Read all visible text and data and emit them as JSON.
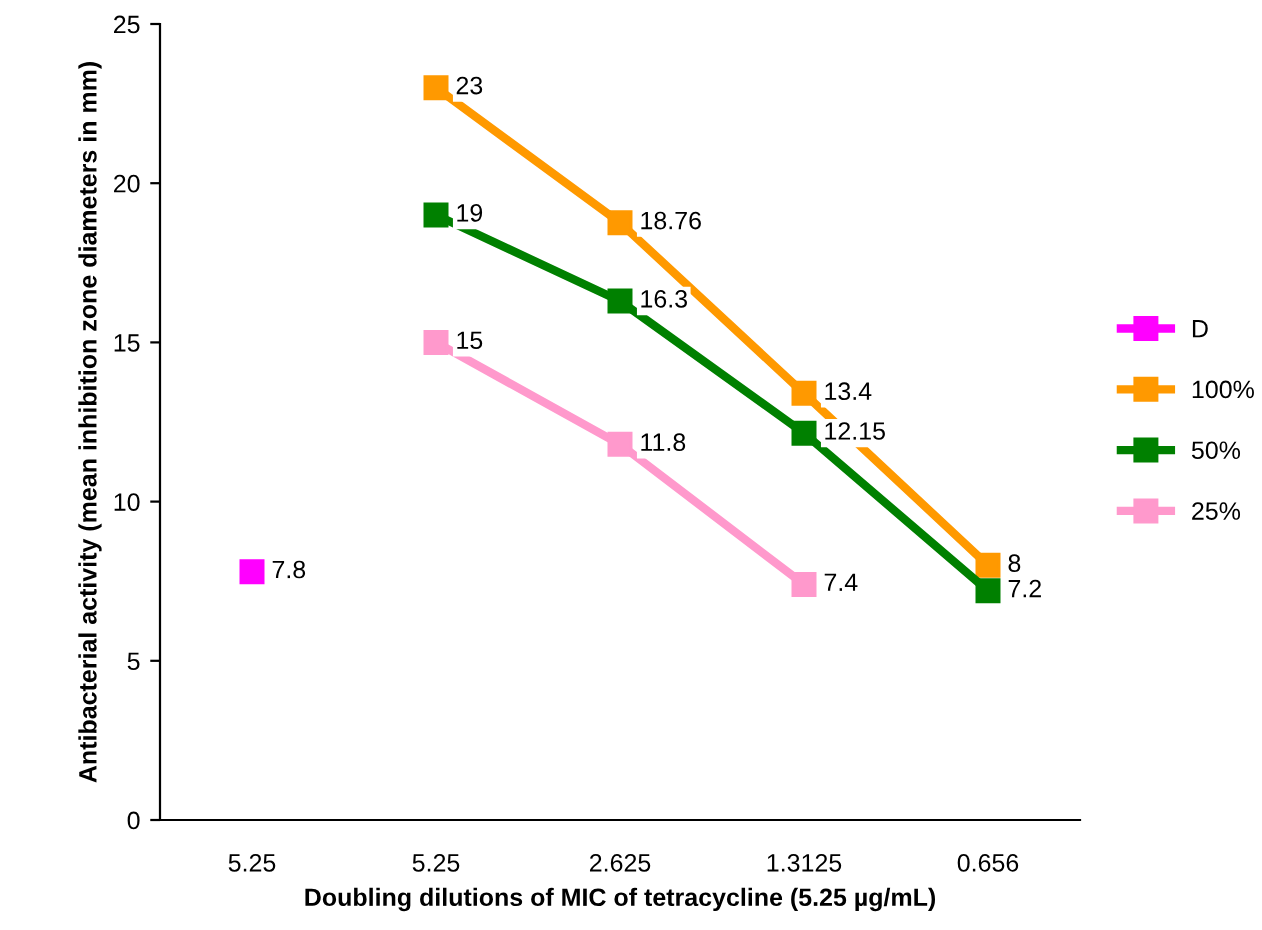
{
  "chart_data": {
    "type": "line",
    "xlabel": "Doubling dilutions of MIC of tetracycline (5.25 µg/mL)",
    "ylabel": "Antibacterial activity (mean inhibition zone diameters in mm)",
    "categories": [
      "5.25",
      "5.25",
      "2.625",
      "1.3125",
      "0.656"
    ],
    "series": [
      {
        "name": "D",
        "color": "#ff00ff",
        "values": [
          7.8,
          null,
          null,
          null,
          null
        ]
      },
      {
        "name": "100%",
        "color": "#ff9900",
        "values": [
          null,
          23,
          18.76,
          13.4,
          8
        ]
      },
      {
        "name": "50%",
        "color": "#008000",
        "values": [
          null,
          19,
          16.3,
          12.15,
          7.2
        ]
      },
      {
        "name": "25%",
        "color": "#ff99cc",
        "values": [
          null,
          15,
          11.8,
          7.4,
          null
        ]
      }
    ],
    "ylim": [
      0,
      25
    ],
    "yticks": [
      0,
      5,
      10,
      15,
      20,
      25
    ],
    "grid": false,
    "legend": "right",
    "marker": "square",
    "line_style": "solid",
    "data_labels": true
  }
}
